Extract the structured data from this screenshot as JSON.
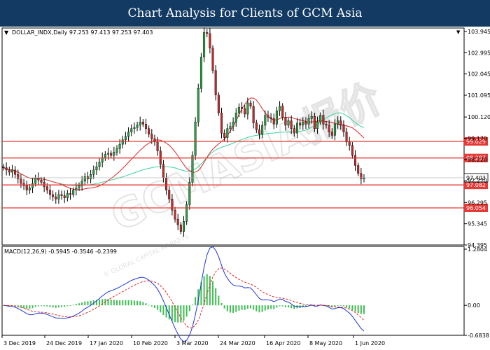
{
  "banner": {
    "title": "Chart Analysis for Clients of GCM Asia"
  },
  "watermark": {
    "text": "GCMASIA报价",
    "subtext": "© GLOBAL CAPITAL MARKETS"
  },
  "chart_data": [
    {
      "type": "candlestick",
      "title": "DOLLAR_INDX,Daily  97.253 97.413 97.253 97.403",
      "y_ticks": [
        103.945,
        102.995,
        102.045,
        101.095,
        100.12,
        99.17,
        98.22,
        97.27,
        96.295,
        95.345,
        94.395
      ],
      "ylim": [
        94.395,
        104.1
      ],
      "x_labels": [
        "3 Dec 2019",
        "24 Dec 2019",
        "17 Jan 2020",
        "10 Feb 2020",
        "3 Mar 2020",
        "24 Mar 2020",
        "16 Apr 2020",
        "8 May 2020",
        "1 Jun 2020"
      ],
      "current_price": "97.403",
      "levels": [
        {
          "value": 99.029,
          "label": "99.029"
        },
        {
          "value": 98.287,
          "label": "98.287"
        },
        {
          "value": 97.082,
          "label": "97.082"
        },
        {
          "value": 96.054,
          "label": "96.054"
        }
      ],
      "closes": [
        97.85,
        97.75,
        97.65,
        97.75,
        97.55,
        97.35,
        97.15,
        97.05,
        96.85,
        96.95,
        97.15,
        97.4,
        97.3,
        97.2,
        97.0,
        96.85,
        96.65,
        96.55,
        96.45,
        96.65,
        96.6,
        96.5,
        96.7,
        96.65,
        96.85,
        96.95,
        97.05,
        97.25,
        97.45,
        97.35,
        97.55,
        97.75,
        97.9,
        98.1,
        98.3,
        98.45,
        98.5,
        98.4,
        98.55,
        98.7,
        98.9,
        99.1,
        99.25,
        99.45,
        99.6,
        99.65,
        99.75,
        99.9,
        99.8,
        99.6,
        99.35,
        99.15,
        99.0,
        98.6,
        98.0,
        97.4,
        96.85,
        96.45,
        95.95,
        95.55,
        95.3,
        95.0,
        95.45,
        96.2,
        97.2,
        98.4,
        99.9,
        101.4,
        102.8,
        103.9,
        103.85,
        103.2,
        102.2,
        101.1,
        100.3,
        99.4,
        99.2,
        99.6,
        99.7,
        99.9,
        100.3,
        100.55,
        100.5,
        100.25,
        100.75,
        100.6,
        99.85,
        99.55,
        99.35,
        99.75,
        100.2,
        100.1,
        100.05,
        99.8,
        100.4,
        100.6,
        100.1,
        99.75,
        99.95,
        99.6,
        99.4,
        99.85,
        99.75,
        99.9,
        99.8,
        100.05,
        100.15,
        99.6,
        99.9,
        100.2,
        99.8,
        99.75,
        99.45,
        99.3,
        99.8,
        99.95,
        99.75,
        99.45,
        99.0,
        98.85,
        98.4,
        97.95,
        97.6,
        97.35,
        97.4
      ],
      "ma_fast_period": 20,
      "ma_slow_period": 50
    },
    {
      "type": "macd",
      "title": "MACD(12,26,9) -0.5945 -0.3546 -0.2399",
      "y_ticks": [
        1.2804,
        0.0,
        -0.6838
      ],
      "ylim": [
        -0.6838,
        1.2804
      ]
    }
  ]
}
